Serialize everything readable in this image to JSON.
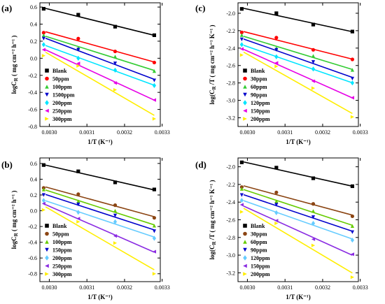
{
  "chart_data": [
    {
      "type": "scatter",
      "panel_label": "(a)",
      "ylabel": "logC_R  ( mg cm⁻² h⁻¹ )",
      "ylabel_main": "logC",
      "ylabel_sub": "R",
      "ylabel_unit": "( mg cm⁻² h⁻¹ )",
      "xlabel": "1/T (K⁻¹)",
      "xlim": [
        0.002975,
        0.003295
      ],
      "ylim": [
        -0.8,
        0.65
      ],
      "xticks": [
        0.003,
        0.0031,
        0.0032,
        0.0033
      ],
      "xtick_labels": [
        "0.0030",
        "0.0031",
        "0.0032",
        "0.0033"
      ],
      "yticks": [
        -0.8,
        -0.6,
        -0.4,
        -0.2,
        0.0,
        0.2,
        0.4,
        0.6
      ],
      "ytick_labels": [
        "-0.8",
        "-0.6",
        "-0.4",
        "-0.2",
        "0.0",
        "0.2",
        "0.4",
        "0.6"
      ],
      "legend_position": "bottom-left",
      "series": [
        {
          "name": "Blank",
          "color": "#000000",
          "marker": "square",
          "x": [
            0.002985,
            0.003077,
            0.003175,
            0.003279
          ],
          "y": [
            0.58,
            0.51,
            0.37,
            0.27
          ]
        },
        {
          "name": "50ppm",
          "color": "#ff0000",
          "marker": "circle",
          "x": [
            0.002985,
            0.003077,
            0.003175,
            0.003279
          ],
          "y": [
            0.3,
            0.23,
            0.08,
            -0.05
          ]
        },
        {
          "name": "100ppm",
          "color": "#33cc33",
          "marker": "triangle-up",
          "x": [
            0.002985,
            0.003077,
            0.003175,
            0.003279
          ],
          "y": [
            0.27,
            0.12,
            0.02,
            -0.15
          ]
        },
        {
          "name": "1500ppm",
          "color": "#0000cc",
          "marker": "triangle-down",
          "x": [
            0.002985,
            0.003077,
            0.003175,
            0.003279
          ],
          "y": [
            0.23,
            0.1,
            -0.06,
            -0.26
          ]
        },
        {
          "name": "200ppm",
          "color": "#00e5ff",
          "marker": "diamond",
          "x": [
            0.002985,
            0.003077,
            0.003175,
            0.003279
          ],
          "y": [
            0.16,
            0.0,
            -0.14,
            -0.32
          ]
        },
        {
          "name": "250ppm",
          "color": "#e600e6",
          "marker": "triangle-left",
          "x": [
            0.002985,
            0.003077,
            0.003175,
            0.003279
          ],
          "y": [
            0.1,
            -0.06,
            -0.29,
            -0.49
          ]
        },
        {
          "name": "300ppm",
          "color": "#ffee00",
          "marker": "triangle-right",
          "x": [
            0.002985,
            0.003077,
            0.003175,
            0.003279
          ],
          "y": [
            0.03,
            -0.09,
            -0.37,
            -0.71
          ]
        }
      ]
    },
    {
      "type": "scatter",
      "panel_label": "(c)",
      "ylabel": "log(C_R/T  ( mg cm⁻² h⁻¹ K⁻¹ )",
      "ylabel_main": "log(C",
      "ylabel_sub": "R",
      "ylabel_unit": "/T  ( mg cm⁻² h⁻¹ K⁻¹ )",
      "xlabel": "1/T (K⁻¹)",
      "xlim": [
        0.002975,
        0.003295
      ],
      "ylim": [
        -3.3,
        -1.88
      ],
      "xticks": [
        0.003,
        0.0031,
        0.0032,
        0.0033
      ],
      "xtick_labels": [
        "0.0030",
        "0.0031",
        "0.0032",
        "0.0033"
      ],
      "yticks": [
        -3.2,
        -3.0,
        -2.8,
        -2.6,
        -2.4,
        -2.2,
        -2.0
      ],
      "ytick_labels": [
        "-3.2",
        "-3.0",
        "-2.8",
        "-2.6",
        "-2.4",
        "-2.2",
        "-2.0"
      ],
      "legend_position": "bottom-left",
      "series": [
        {
          "name": "Blank",
          "color": "#000000",
          "marker": "square",
          "x": [
            0.002985,
            0.003077,
            0.003175,
            0.003279
          ],
          "y": [
            -1.95,
            -2.0,
            -2.13,
            -2.21
          ]
        },
        {
          "name": "30ppm",
          "color": "#ff0000",
          "marker": "circle",
          "x": [
            0.002985,
            0.003077,
            0.003175,
            0.003279
          ],
          "y": [
            -2.22,
            -2.28,
            -2.42,
            -2.53
          ]
        },
        {
          "name": "60ppm",
          "color": "#33cc33",
          "marker": "triangle-up",
          "x": [
            0.002985,
            0.003077,
            0.003175,
            0.003279
          ],
          "y": [
            -2.25,
            -2.4,
            -2.49,
            -2.65
          ]
        },
        {
          "name": "90ppm",
          "color": "#0000cc",
          "marker": "triangle-down",
          "x": [
            0.002985,
            0.003077,
            0.003175,
            0.003279
          ],
          "y": [
            -2.3,
            -2.42,
            -2.56,
            -2.75
          ]
        },
        {
          "name": "120ppm",
          "color": "#00e5ff",
          "marker": "diamond",
          "x": [
            0.002985,
            0.003077,
            0.003175,
            0.003279
          ],
          "y": [
            -2.36,
            -2.5,
            -2.64,
            -2.8
          ]
        },
        {
          "name": "150ppm",
          "color": "#e600e6",
          "marker": "triangle-left",
          "x": [
            0.002985,
            0.003077,
            0.003175,
            0.003279
          ],
          "y": [
            -2.41,
            -2.57,
            -2.78,
            -2.97
          ]
        },
        {
          "name": "200ppm",
          "color": "#ffee00",
          "marker": "triangle-right",
          "x": [
            0.002985,
            0.003077,
            0.003175,
            0.003279
          ],
          "y": [
            -2.48,
            -2.61,
            -2.86,
            -3.19
          ]
        }
      ]
    },
    {
      "type": "scatter",
      "panel_label": "(b)",
      "ylabel": "logC_R  ( mg cm⁻² h⁻¹ )",
      "ylabel_main": "logC",
      "ylabel_sub": "R",
      "ylabel_unit": "( mg cm⁻² h⁻¹ )",
      "xlabel": "1/T (K⁻¹)",
      "xlim": [
        0.002975,
        0.003295
      ],
      "ylim": [
        -0.9,
        0.67
      ],
      "xticks": [
        0.003,
        0.0031,
        0.0032,
        0.0033
      ],
      "xtick_labels": [
        "0.0030",
        "0.0031",
        "0.0032",
        "0.0033"
      ],
      "yticks": [
        -0.8,
        -0.6,
        -0.4,
        -0.2,
        0.0,
        0.2,
        0.4,
        0.6
      ],
      "ytick_labels": [
        "-0.8",
        "-0.6",
        "-0.4",
        "-0.2",
        "0.0",
        "0.2",
        "0.4",
        "0.6"
      ],
      "legend_position": "bottom-left",
      "series": [
        {
          "name": "Blank",
          "color": "#000000",
          "marker": "square",
          "x": [
            0.002985,
            0.003077,
            0.003175,
            0.003279
          ],
          "y": [
            0.58,
            0.5,
            0.36,
            0.27
          ]
        },
        {
          "name": "50ppm",
          "color": "#8b4513",
          "marker": "circle",
          "x": [
            0.002985,
            0.003077,
            0.003175,
            0.003279
          ],
          "y": [
            0.29,
            0.21,
            0.07,
            -0.09
          ]
        },
        {
          "name": "100ppm",
          "color": "#66cc00",
          "marker": "triangle-up",
          "x": [
            0.002985,
            0.003077,
            0.003175,
            0.003279
          ],
          "y": [
            0.27,
            0.12,
            0.0,
            -0.19
          ]
        },
        {
          "name": "150ppm",
          "color": "#0000cc",
          "marker": "triangle-down",
          "x": [
            0.002985,
            0.003077,
            0.003175,
            0.003279
          ],
          "y": [
            0.2,
            0.08,
            -0.06,
            -0.26
          ]
        },
        {
          "name": "200ppm",
          "color": "#66ccff",
          "marker": "diamond",
          "x": [
            0.002985,
            0.003077,
            0.003175,
            0.003279
          ],
          "y": [
            0.13,
            -0.02,
            -0.14,
            -0.35
          ]
        },
        {
          "name": "250ppm",
          "color": "#8a2be2",
          "marker": "triangle-left",
          "x": [
            0.002985,
            0.003077,
            0.003175,
            0.003279
          ],
          "y": [
            0.09,
            -0.1,
            -0.32,
            -0.52
          ]
        },
        {
          "name": "300ppm",
          "color": "#ffee00",
          "marker": "triangle-right",
          "x": [
            0.002985,
            0.003077,
            0.003175,
            0.003279
          ],
          "y": [
            0.01,
            -0.14,
            -0.41,
            -0.8
          ]
        }
      ]
    },
    {
      "type": "scatter",
      "panel_label": "(d)",
      "ylabel": "log(C_R/T  ( mg cm⁻² h⁻¹ K⁻¹ )",
      "ylabel_main": "log(C",
      "ylabel_sub": "R",
      "ylabel_unit": "/T  ( mg cm⁻² h⁻¹ K⁻¹ )",
      "xlabel": "1/T (K⁻¹)",
      "xlim": [
        0.002975,
        0.003295
      ],
      "ylim": [
        -3.3,
        -1.9
      ],
      "xticks": [
        0.003,
        0.0031,
        0.0032,
        0.0033
      ],
      "xtick_labels": [
        "0.0030",
        "0.0031",
        "0.0032",
        "0.0033"
      ],
      "yticks": [
        -3.2,
        -3.0,
        -2.8,
        -2.6,
        -2.4,
        -2.2,
        -2.0
      ],
      "ytick_labels": [
        "-3.2",
        "-3.0",
        "-2.8",
        "-2.6",
        "-2.4",
        "-2.2",
        "-2.0"
      ],
      "legend_position": "bottom-left",
      "series": [
        {
          "name": "Blank",
          "color": "#000000",
          "marker": "square",
          "x": [
            0.002985,
            0.003077,
            0.003175,
            0.003279
          ],
          "y": [
            -1.95,
            -2.01,
            -2.13,
            -2.22
          ]
        },
        {
          "name": "30ppm",
          "color": "#8b4513",
          "marker": "circle",
          "x": [
            0.002985,
            0.003077,
            0.003175,
            0.003279
          ],
          "y": [
            -2.23,
            -2.29,
            -2.42,
            -2.56
          ]
        },
        {
          "name": "60ppm",
          "color": "#66cc00",
          "marker": "triangle-up",
          "x": [
            0.002985,
            0.003077,
            0.003175,
            0.003279
          ],
          "y": [
            -2.25,
            -2.39,
            -2.5,
            -2.67
          ]
        },
        {
          "name": "90ppm",
          "color": "#0000cc",
          "marker": "triangle-down",
          "x": [
            0.002985,
            0.003077,
            0.003175,
            0.003279
          ],
          "y": [
            -2.32,
            -2.43,
            -2.57,
            -2.74
          ]
        },
        {
          "name": "120ppm",
          "color": "#66ccff",
          "marker": "diamond",
          "x": [
            0.002985,
            0.003077,
            0.003175,
            0.003279
          ],
          "y": [
            -2.38,
            -2.52,
            -2.64,
            -2.83
          ]
        },
        {
          "name": "150ppm",
          "color": "#8a2be2",
          "marker": "triangle-left",
          "x": [
            0.002985,
            0.003077,
            0.003175,
            0.003279
          ],
          "y": [
            -2.43,
            -2.61,
            -2.82,
            -2.99
          ]
        },
        {
          "name": "200ppm",
          "color": "#ffee00",
          "marker": "triangle-right",
          "x": [
            0.002985,
            0.003077,
            0.003175,
            0.003279
          ],
          "y": [
            -2.51,
            -2.64,
            -2.89,
            -3.25
          ]
        }
      ]
    }
  ]
}
